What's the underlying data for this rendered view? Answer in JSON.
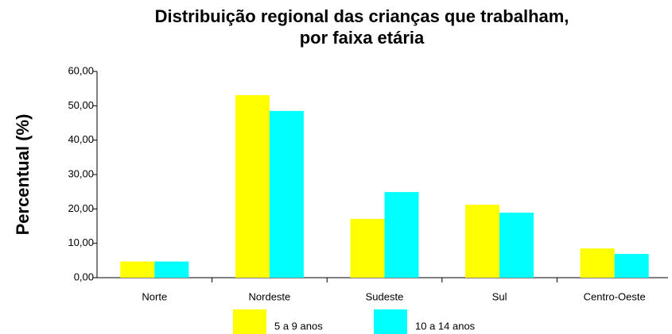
{
  "chart_data": {
    "type": "bar",
    "title": [
      "Distribuição regional das crianças que trabalham,",
      "por faixa etária"
    ],
    "y_label": "Percentual (%)",
    "categories": [
      "Norte",
      "Nordeste",
      "Sudeste",
      "Sul",
      "Centro-Oeste"
    ],
    "series": [
      {
        "name": "5 a 9 anos",
        "color": "#ffff00",
        "values": [
          4.7,
          53.1,
          17.1,
          21.2,
          8.5
        ]
      },
      {
        "name": "10 a 14 anos",
        "color": "#00ffff",
        "values": [
          4.7,
          48.5,
          24.9,
          18.9,
          6.9
        ]
      }
    ],
    "ylim": [
      0,
      60
    ],
    "yticks": [
      {
        "value": 0,
        "label": "0,00"
      },
      {
        "value": 10,
        "label": "10,00"
      },
      {
        "value": 20,
        "label": "20,00"
      },
      {
        "value": 30,
        "label": "30,00"
      },
      {
        "value": 40,
        "label": "40,00"
      },
      {
        "value": 50,
        "label": "50,00"
      },
      {
        "value": 60,
        "label": "60,00"
      }
    ],
    "grid": false
  }
}
